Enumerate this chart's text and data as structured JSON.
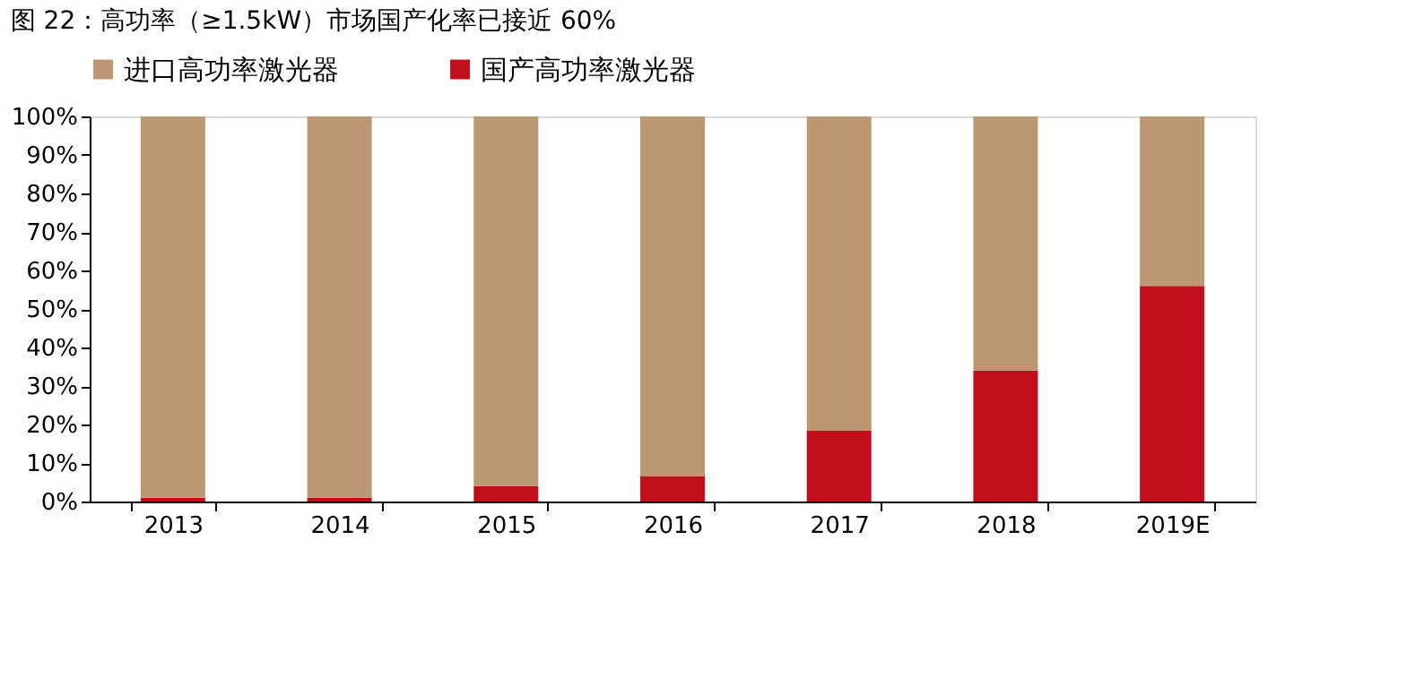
{
  "chart_data": {
    "type": "bar",
    "stacked": true,
    "title": "图 22：高功率（≥1.5kW）市场国产化率已接近 60%",
    "categories": [
      "2013",
      "2014",
      "2015",
      "2016",
      "2017",
      "2018",
      "2019E"
    ],
    "series": [
      {
        "name": "国产高功率激光器",
        "color": "#c00f1d",
        "values": [
          1,
          1,
          4,
          6.5,
          18.5,
          34,
          56
        ]
      },
      {
        "name": "进口高功率激光器",
        "color": "#bb9872",
        "values": [
          99,
          99,
          96,
          93.5,
          81.5,
          66,
          44
        ]
      }
    ],
    "ylim": [
      0,
      100
    ],
    "yticks": [
      {
        "value": 0,
        "label": "0%"
      },
      {
        "value": 10,
        "label": "10%"
      },
      {
        "value": 20,
        "label": "20%"
      },
      {
        "value": 30,
        "label": "30%"
      },
      {
        "value": 40,
        "label": "40%"
      },
      {
        "value": 50,
        "label": "50%"
      },
      {
        "value": 60,
        "label": "60%"
      },
      {
        "value": 70,
        "label": "70%"
      },
      {
        "value": 80,
        "label": "80%"
      },
      {
        "value": 90,
        "label": "90%"
      },
      {
        "value": 100,
        "label": "100%"
      }
    ],
    "legend": "top",
    "grid": false
  }
}
